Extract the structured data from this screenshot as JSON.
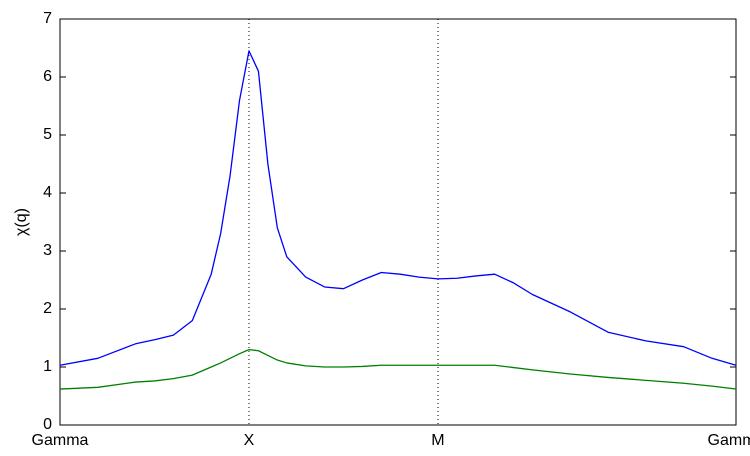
{
  "chart_data": {
    "type": "line",
    "y_label": "χ(q)",
    "x": [
      0,
      0.2,
      0.4,
      0.5,
      0.6,
      0.7,
      0.8,
      0.85,
      0.9,
      0.95,
      1.0,
      1.05,
      1.1,
      1.15,
      1.2,
      1.3,
      1.4,
      1.5,
      1.6,
      1.7,
      1.8,
      1.9,
      2.0,
      2.1,
      2.2,
      2.3,
      2.4,
      2.5,
      2.7,
      2.9,
      3.1,
      3.3,
      3.45,
      3.577
    ],
    "series": [
      {
        "color": "#0000ff",
        "values": [
          1.03,
          1.15,
          1.4,
          1.47,
          1.55,
          1.8,
          2.6,
          3.3,
          4.3,
          5.6,
          6.45,
          6.1,
          4.5,
          3.4,
          2.9,
          2.55,
          2.38,
          2.35,
          2.5,
          2.63,
          2.6,
          2.55,
          2.52,
          2.53,
          2.57,
          2.6,
          2.45,
          2.25,
          1.95,
          1.6,
          1.45,
          1.35,
          1.15,
          1.03
        ]
      },
      {
        "color": "#008000",
        "values": [
          0.62,
          0.65,
          0.74,
          0.76,
          0.8,
          0.86,
          1.0,
          1.07,
          1.15,
          1.23,
          1.3,
          1.28,
          1.2,
          1.12,
          1.07,
          1.02,
          1.0,
          1.0,
          1.01,
          1.03,
          1.03,
          1.03,
          1.03,
          1.03,
          1.03,
          1.03,
          0.99,
          0.95,
          0.88,
          0.82,
          0.77,
          0.72,
          0.67,
          0.62
        ]
      }
    ],
    "xlim": [
      0,
      3.577
    ],
    "xticks": [
      {
        "value": 0,
        "label": "Gamma"
      },
      {
        "value": 1,
        "label": "X"
      },
      {
        "value": 2,
        "label": "M"
      },
      {
        "value": 3.577,
        "label": "Gamma"
      }
    ],
    "ylim": [
      0,
      7
    ],
    "yticks": [
      0,
      1,
      2,
      3,
      4,
      5,
      6,
      7
    ],
    "xgrid": true
  }
}
